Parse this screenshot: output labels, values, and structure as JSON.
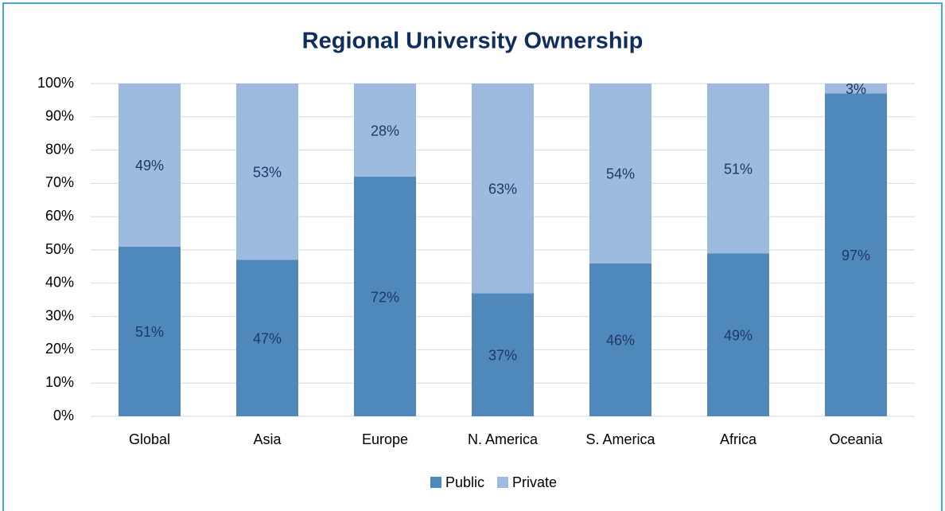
{
  "chart_data": {
    "type": "stacked_bar",
    "title": "Regional University Ownership",
    "categories": [
      "Global",
      "Asia",
      "Europe",
      "N. America",
      "S. America",
      "Africa",
      "Oceania"
    ],
    "series": [
      {
        "name": "Public",
        "color": "#4f88bb",
        "values": [
          51,
          47,
          72,
          37,
          46,
          49,
          97
        ],
        "value_labels": [
          "51%",
          "47%",
          "72%",
          "37%",
          "46%",
          "49%",
          "97%"
        ]
      },
      {
        "name": "Private",
        "color": "#9dbadf",
        "values": [
          49,
          53,
          28,
          63,
          54,
          51,
          3
        ],
        "value_labels": [
          "49%",
          "53%",
          "28%",
          "63%",
          "54%",
          "51%",
          "3%"
        ]
      }
    ],
    "ylim": [
      0,
      100
    ],
    "yticks": [
      {
        "value": 0,
        "label": "0%"
      },
      {
        "value": 10,
        "label": "10%"
      },
      {
        "value": 20,
        "label": "20%"
      },
      {
        "value": 30,
        "label": "30%"
      },
      {
        "value": 40,
        "label": "40%"
      },
      {
        "value": 50,
        "label": "50%"
      },
      {
        "value": 60,
        "label": "60%"
      },
      {
        "value": 70,
        "label": "70%"
      },
      {
        "value": 80,
        "label": "80%"
      },
      {
        "value": 90,
        "label": "90%"
      },
      {
        "value": 100,
        "label": "100%"
      }
    ],
    "grid": true,
    "legend": "bottom"
  }
}
